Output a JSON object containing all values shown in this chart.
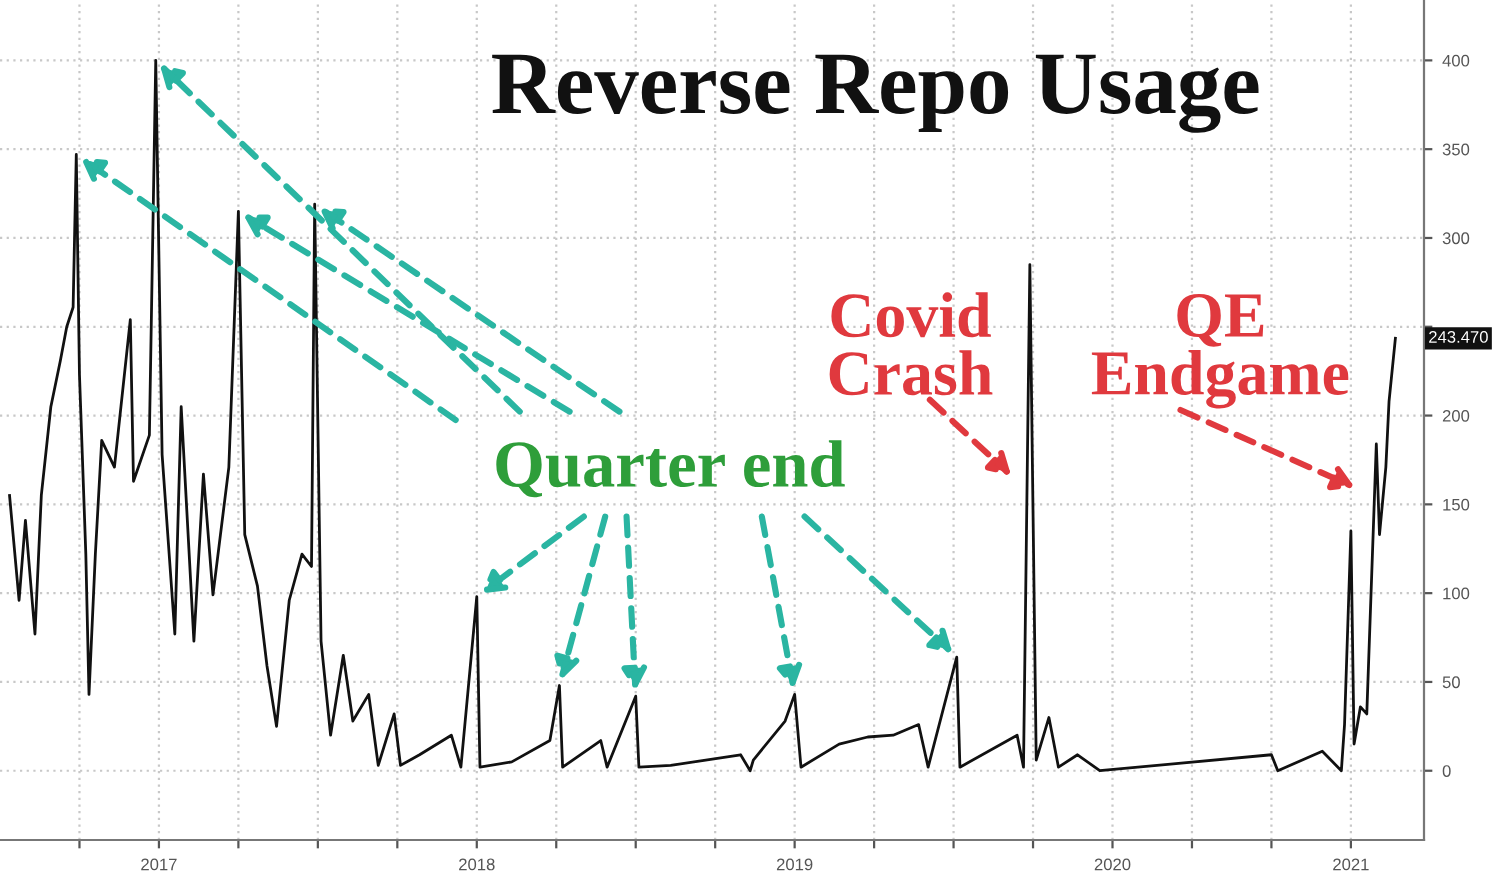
{
  "chart_data": {
    "type": "line",
    "title": "Reverse Repo Usage",
    "x": [
      2017.03,
      2017.06,
      2017.08,
      2017.11,
      2017.13,
      2017.16,
      2017.19,
      2017.21,
      2017.23,
      2017.24,
      2017.25,
      2017.27,
      2017.28,
      2017.3,
      2017.32,
      2017.36,
      2017.41,
      2017.42,
      2017.47,
      2017.49,
      2017.51,
      2017.55,
      2017.57,
      2017.61,
      2017.64,
      2017.67,
      2017.72,
      2017.75,
      2017.77,
      2017.81,
      2017.84,
      2017.87,
      2017.91,
      2017.95,
      2017.98,
      2017.99,
      2018.01,
      2018.04,
      2018.08,
      2018.11,
      2018.16,
      2018.19,
      2018.24,
      2018.26,
      2018.32,
      2018.42,
      2018.45,
      2018.5,
      2018.51,
      2018.61,
      2018.73,
      2018.76,
      2018.77,
      2018.89,
      2018.91,
      2019.0,
      2019.01,
      2019.11,
      2019.33,
      2019.36,
      2019.37,
      2019.47,
      2019.5,
      2019.52,
      2019.64,
      2019.73,
      2019.81,
      2019.89,
      2019.92,
      2020.01,
      2020.02,
      2020.2,
      2020.22,
      2020.24,
      2020.26,
      2020.3,
      2020.33,
      2020.39,
      2020.46,
      2021.0,
      2021.02,
      2021.16,
      2021.22,
      2021.23,
      2021.25,
      2021.26,
      2021.28,
      2021.3,
      2021.33,
      2021.34,
      2021.36,
      2021.37,
      2021.39
    ],
    "series": [
      {
        "color": "#111111",
        "values": [
          155,
          96,
          141,
          77,
          155,
          205,
          231,
          250,
          261,
          347,
          223,
          122,
          43,
          122,
          186,
          171,
          254,
          163,
          189,
          400,
          178,
          77,
          205,
          73,
          167,
          99,
          171,
          315,
          133,
          104,
          59,
          25,
          96,
          122,
          115,
          319,
          73,
          20,
          65,
          28,
          43,
          3,
          32,
          3,
          9,
          20,
          2,
          98,
          2,
          5,
          17,
          48,
          2,
          17,
          2,
          42,
          2,
          3,
          9,
          0,
          6,
          28,
          43,
          2,
          15,
          19,
          20,
          26,
          2,
          64,
          2,
          20,
          2,
          285,
          6,
          30,
          2,
          9,
          0,
          9,
          0,
          11,
          0,
          26,
          135,
          15,
          36,
          32,
          184,
          133,
          171,
          208,
          243.47
        ]
      }
    ],
    "xlim": [
      2017.0,
      2021.48
    ],
    "ylim": [
      -39,
      434
    ],
    "xticks": [
      {
        "value": 2017.25,
        "label": null
      },
      {
        "value": 2017.5,
        "label": "2017"
      },
      {
        "value": 2017.75,
        "label": null
      },
      {
        "value": 2018.0,
        "label": null
      },
      {
        "value": 2018.25,
        "label": null
      },
      {
        "value": 2018.5,
        "label": "2018"
      },
      {
        "value": 2018.75,
        "label": null
      },
      {
        "value": 2019.0,
        "label": null
      },
      {
        "value": 2019.25,
        "label": null
      },
      {
        "value": 2019.5,
        "label": "2019"
      },
      {
        "value": 2019.75,
        "label": null
      },
      {
        "value": 2020.0,
        "label": null
      },
      {
        "value": 2020.25,
        "label": null
      },
      {
        "value": 2020.5,
        "label": "2020"
      },
      {
        "value": 2020.75,
        "label": null
      },
      {
        "value": 2021.0,
        "label": null
      },
      {
        "value": 2021.25,
        "label": "2021"
      }
    ],
    "yticks": [
      0,
      50,
      100,
      150,
      200,
      {
        "value": 250,
        "label": null
      },
      300,
      350,
      400
    ],
    "grid": true,
    "annotations": [
      {
        "text": "Quarter end",
        "x": 2017.24,
        "y": 347
      },
      "Covid Crash",
      "QE Endgame",
      "243.470"
    ]
  }
}
